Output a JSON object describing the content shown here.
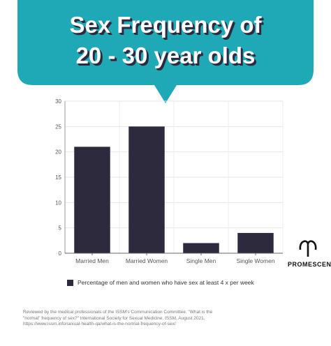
{
  "chart_data": {
    "type": "bar",
    "title": "Sex Frequency of 20 - 30 year olds",
    "categories": [
      "Married Men",
      "Married Women",
      "Single Men",
      "Single Women"
    ],
    "series": [
      {
        "name": "Percentage of men and women who have sex at least 4 x per week",
        "color": "#2d2a3e",
        "values": [
          21,
          25,
          2,
          4
        ]
      }
    ],
    "ylim": [
      0,
      30
    ],
    "yticks": [
      0,
      5,
      10,
      15,
      20,
      25,
      30
    ],
    "grid": true,
    "banner_color": "#1fa9b6",
    "brand": "PROMESCENT",
    "source": "Reviewed by the medical professionals of the ISSM's Communication Committee. \"What is the \"normal\" frequency of sex?\" International Society for Sexual Medicine. ISSM. August 2021. https://www.issm.info/sexual-health-qa/what-is-the-normal-frequency-of-sex/"
  }
}
